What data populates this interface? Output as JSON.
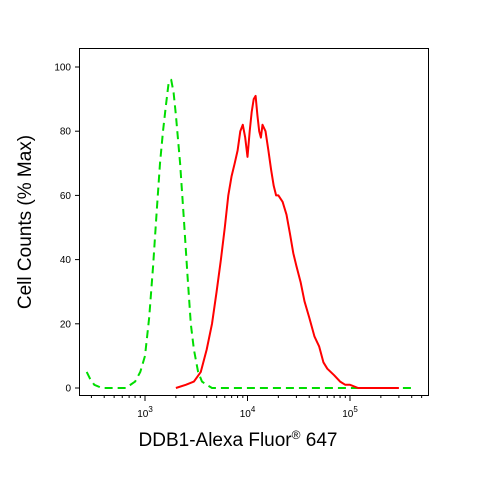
{
  "chart_data": {
    "type": "line",
    "x_scale": "log-like (flow cytometry)",
    "xlabel_main": "DDB1-Alexa Fluor",
    "xlabel_sup": "®",
    "xlabel_tail": " 647",
    "ylabel": "Cell Counts (% Max)",
    "ylim": [
      0,
      100
    ],
    "yticks": [
      0,
      20,
      40,
      60,
      80,
      100
    ],
    "ytick_labels": [
      "0",
      "20",
      "40",
      "60",
      "80",
      "100"
    ],
    "xticks_major": [
      {
        "value": 1000,
        "base": "10",
        "exp": "3"
      },
      {
        "value": 10000,
        "base": "10",
        "exp": "4"
      },
      {
        "value": 100000,
        "base": "10",
        "exp": "5"
      }
    ],
    "grid": false,
    "legend": "none",
    "series": [
      {
        "color": "#00dd00",
        "style": "dashed",
        "x": [
          270,
          290,
          320,
          380,
          500,
          650,
          800,
          900,
          1000,
          1100,
          1200,
          1300,
          1400,
          1500,
          1600,
          1700,
          1800,
          1900,
          2000,
          2200,
          2400,
          2600,
          2800,
          3000,
          3300,
          3600,
          4000,
          4500,
          5000,
          6000,
          8000,
          10000,
          20000,
          50000,
          100000,
          200000,
          400000
        ],
        "y": [
          5,
          3,
          1,
          0,
          0,
          0,
          2,
          5,
          10,
          22,
          38,
          55,
          70,
          80,
          88,
          95,
          96,
          92,
          85,
          70,
          52,
          35,
          20,
          12,
          5,
          2,
          1,
          0,
          0,
          0,
          0,
          0,
          0,
          0,
          0,
          0,
          0
        ]
      },
      {
        "color": "#ff0000",
        "style": "solid",
        "x": [
          2000,
          2500,
          3000,
          3500,
          4000,
          4500,
          5000,
          5500,
          6000,
          6500,
          7000,
          7500,
          8000,
          8500,
          9000,
          9500,
          10000,
          10500,
          11000,
          11500,
          12000,
          12500,
          13000,
          13500,
          14000,
          15000,
          16000,
          17000,
          18000,
          19000,
          20000,
          22000,
          24000,
          26000,
          28000,
          30000,
          33000,
          36000,
          40000,
          45000,
          50000,
          55000,
          60000,
          70000,
          80000,
          90000,
          100000,
          120000,
          150000,
          200000,
          300000
        ],
        "y": [
          0,
          1,
          2,
          5,
          12,
          20,
          30,
          40,
          50,
          60,
          66,
          70,
          74,
          80,
          82,
          78,
          72,
          80,
          86,
          90,
          91,
          85,
          80,
          78,
          82,
          80,
          74,
          68,
          63,
          60,
          60,
          58,
          54,
          48,
          42,
          38,
          33,
          27,
          22,
          16,
          13,
          8,
          6,
          4,
          2,
          1,
          1,
          0,
          0,
          0,
          0
        ]
      }
    ]
  }
}
